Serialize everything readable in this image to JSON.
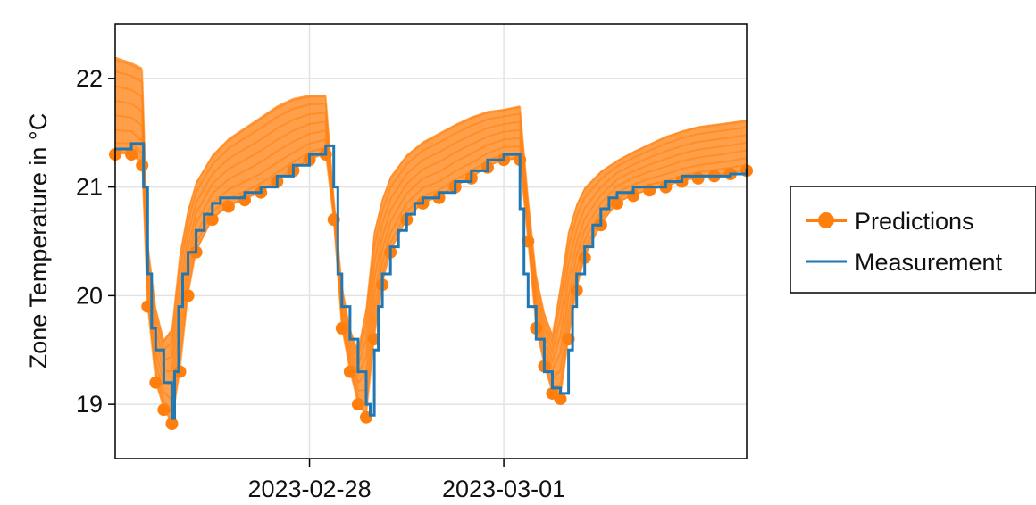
{
  "chart_data": {
    "type": "line",
    "title": "",
    "xlabel": "",
    "ylabel": "Zone Temperature in °C",
    "x_range": [
      "2023-02-27 00:00",
      "2023-03-02 06:00"
    ],
    "ylim": [
      18.5,
      22.5
    ],
    "x_ticks": [
      "2023-02-28",
      "2023-03-01"
    ],
    "y_ticks": [
      19,
      20,
      21,
      22
    ],
    "grid": true,
    "legend_position": "right",
    "colors": {
      "predictions": "#ff7f0e",
      "measurement": "#1f77b4"
    },
    "series": [
      {
        "name": "Measurement",
        "kind": "line",
        "x": [
          "2023-02-27 00:00",
          "2023-02-27 02:00",
          "2023-02-27 03:20",
          "2023-02-27 03:30",
          "2023-02-27 04:00",
          "2023-02-27 04:30",
          "2023-02-27 05:00",
          "2023-02-27 06:00",
          "2023-02-27 07:00",
          "2023-02-27 07:20",
          "2023-02-27 07:50",
          "2023-02-27 08:20",
          "2023-02-27 09:00",
          "2023-02-27 10:00",
          "2023-02-27 11:00",
          "2023-02-27 12:00",
          "2023-02-27 13:00",
          "2023-02-27 14:00",
          "2023-02-27 16:00",
          "2023-02-27 18:00",
          "2023-02-27 20:00",
          "2023-02-27 22:00",
          "2023-02-28 00:00",
          "2023-02-28 02:00",
          "2023-02-28 03:00",
          "2023-02-28 03:30",
          "2023-02-28 04:00",
          "2023-02-28 05:00",
          "2023-02-28 06:00",
          "2023-02-28 07:00",
          "2023-02-28 07:30",
          "2023-02-28 08:00",
          "2023-02-28 08:30",
          "2023-02-28 09:00",
          "2023-02-28 10:00",
          "2023-02-28 11:00",
          "2023-02-28 12:00",
          "2023-02-28 13:00",
          "2023-02-28 14:00",
          "2023-02-28 16:00",
          "2023-02-28 18:00",
          "2023-02-28 20:00",
          "2023-02-28 22:00",
          "2023-03-01 00:00",
          "2023-03-01 01:00",
          "2023-03-01 02:00",
          "2023-03-01 02:30",
          "2023-03-01 03:00",
          "2023-03-01 04:00",
          "2023-03-01 05:00",
          "2023-03-01 06:00",
          "2023-03-01 07:00",
          "2023-03-01 08:00",
          "2023-03-01 08:30",
          "2023-03-01 09:00",
          "2023-03-01 10:00",
          "2023-03-01 11:00",
          "2023-03-01 12:00",
          "2023-03-01 13:00",
          "2023-03-01 14:00",
          "2023-03-01 16:00",
          "2023-03-01 18:00",
          "2023-03-01 20:00",
          "2023-03-01 22:00",
          "2023-03-02 00:00",
          "2023-03-02 02:00",
          "2023-03-02 04:00",
          "2023-03-02 06:00"
        ],
        "y": [
          21.35,
          21.4,
          21.4,
          21.0,
          20.2,
          19.7,
          19.5,
          19.2,
          18.87,
          19.3,
          19.9,
          20.2,
          20.4,
          20.6,
          20.75,
          20.85,
          20.9,
          20.9,
          20.95,
          21.0,
          21.1,
          21.2,
          21.3,
          21.38,
          21.0,
          20.2,
          19.9,
          19.6,
          19.3,
          19.0,
          18.9,
          19.5,
          19.9,
          20.2,
          20.45,
          20.6,
          20.75,
          20.85,
          20.9,
          20.95,
          21.05,
          21.15,
          21.25,
          21.3,
          21.3,
          20.8,
          20.2,
          19.9,
          19.6,
          19.3,
          19.15,
          19.1,
          19.5,
          19.9,
          20.2,
          20.45,
          20.65,
          20.8,
          20.9,
          20.95,
          21.0,
          21.0,
          21.05,
          21.1,
          21.1,
          21.1,
          21.12,
          21.17
        ]
      },
      {
        "name": "Predictions",
        "kind": "ensemble_lines_with_markers",
        "x": [
          "2023-02-27 00:00",
          "2023-02-27 02:00",
          "2023-02-27 03:20",
          "2023-02-27 04:00",
          "2023-02-27 05:00",
          "2023-02-27 06:00",
          "2023-02-27 07:00",
          "2023-02-27 08:00",
          "2023-02-27 09:00",
          "2023-02-27 10:00",
          "2023-02-27 12:00",
          "2023-02-27 14:00",
          "2023-02-27 16:00",
          "2023-02-27 18:00",
          "2023-02-27 20:00",
          "2023-02-27 22:00",
          "2023-02-28 00:00",
          "2023-02-28 02:00",
          "2023-02-28 03:00",
          "2023-02-28 04:00",
          "2023-02-28 05:00",
          "2023-02-28 06:00",
          "2023-02-28 07:00",
          "2023-02-28 08:00",
          "2023-02-28 09:00",
          "2023-02-28 10:00",
          "2023-02-28 12:00",
          "2023-02-28 14:00",
          "2023-02-28 16:00",
          "2023-02-28 18:00",
          "2023-02-28 20:00",
          "2023-02-28 22:00",
          "2023-03-01 00:00",
          "2023-03-01 02:00",
          "2023-03-01 03:00",
          "2023-03-01 04:00",
          "2023-03-01 05:00",
          "2023-03-01 06:00",
          "2023-03-01 07:00",
          "2023-03-01 08:00",
          "2023-03-01 09:00",
          "2023-03-01 10:00",
          "2023-03-01 12:00",
          "2023-03-01 14:00",
          "2023-03-01 16:00",
          "2023-03-01 18:00",
          "2023-03-01 20:00",
          "2023-03-01 22:00",
          "2023-03-02 00:00",
          "2023-03-02 02:00",
          "2023-03-02 04:00",
          "2023-03-02 06:00"
        ],
        "y_low": [
          21.3,
          21.3,
          21.2,
          19.9,
          19.2,
          18.95,
          18.82,
          19.3,
          20.0,
          20.4,
          20.7,
          20.82,
          20.88,
          20.95,
          21.05,
          21.15,
          21.25,
          21.3,
          20.7,
          19.7,
          19.3,
          19.0,
          18.88,
          19.6,
          20.1,
          20.4,
          20.7,
          20.85,
          20.9,
          21.0,
          21.08,
          21.18,
          21.25,
          21.25,
          20.5,
          19.7,
          19.35,
          19.1,
          19.05,
          19.6,
          20.05,
          20.35,
          20.65,
          20.85,
          20.92,
          20.97,
          21.0,
          21.05,
          21.08,
          21.1,
          21.12,
          21.15
        ],
        "y_high": [
          22.2,
          22.15,
          22.1,
          20.5,
          19.9,
          19.6,
          19.7,
          20.4,
          20.8,
          21.05,
          21.3,
          21.45,
          21.55,
          21.65,
          21.75,
          21.82,
          21.85,
          21.85,
          20.9,
          20.1,
          19.7,
          19.5,
          19.9,
          20.6,
          20.9,
          21.1,
          21.3,
          21.42,
          21.5,
          21.58,
          21.65,
          21.7,
          21.72,
          21.75,
          20.9,
          20.2,
          19.85,
          19.65,
          20.1,
          20.6,
          20.85,
          21.0,
          21.15,
          21.25,
          21.33,
          21.4,
          21.47,
          21.52,
          21.56,
          21.58,
          21.6,
          21.62
        ]
      }
    ],
    "legend": [
      {
        "label": "Predictions",
        "marker": "line-circle",
        "color": "#ff7f0e"
      },
      {
        "label": "Measurement",
        "marker": "line",
        "color": "#1f77b4"
      }
    ]
  }
}
